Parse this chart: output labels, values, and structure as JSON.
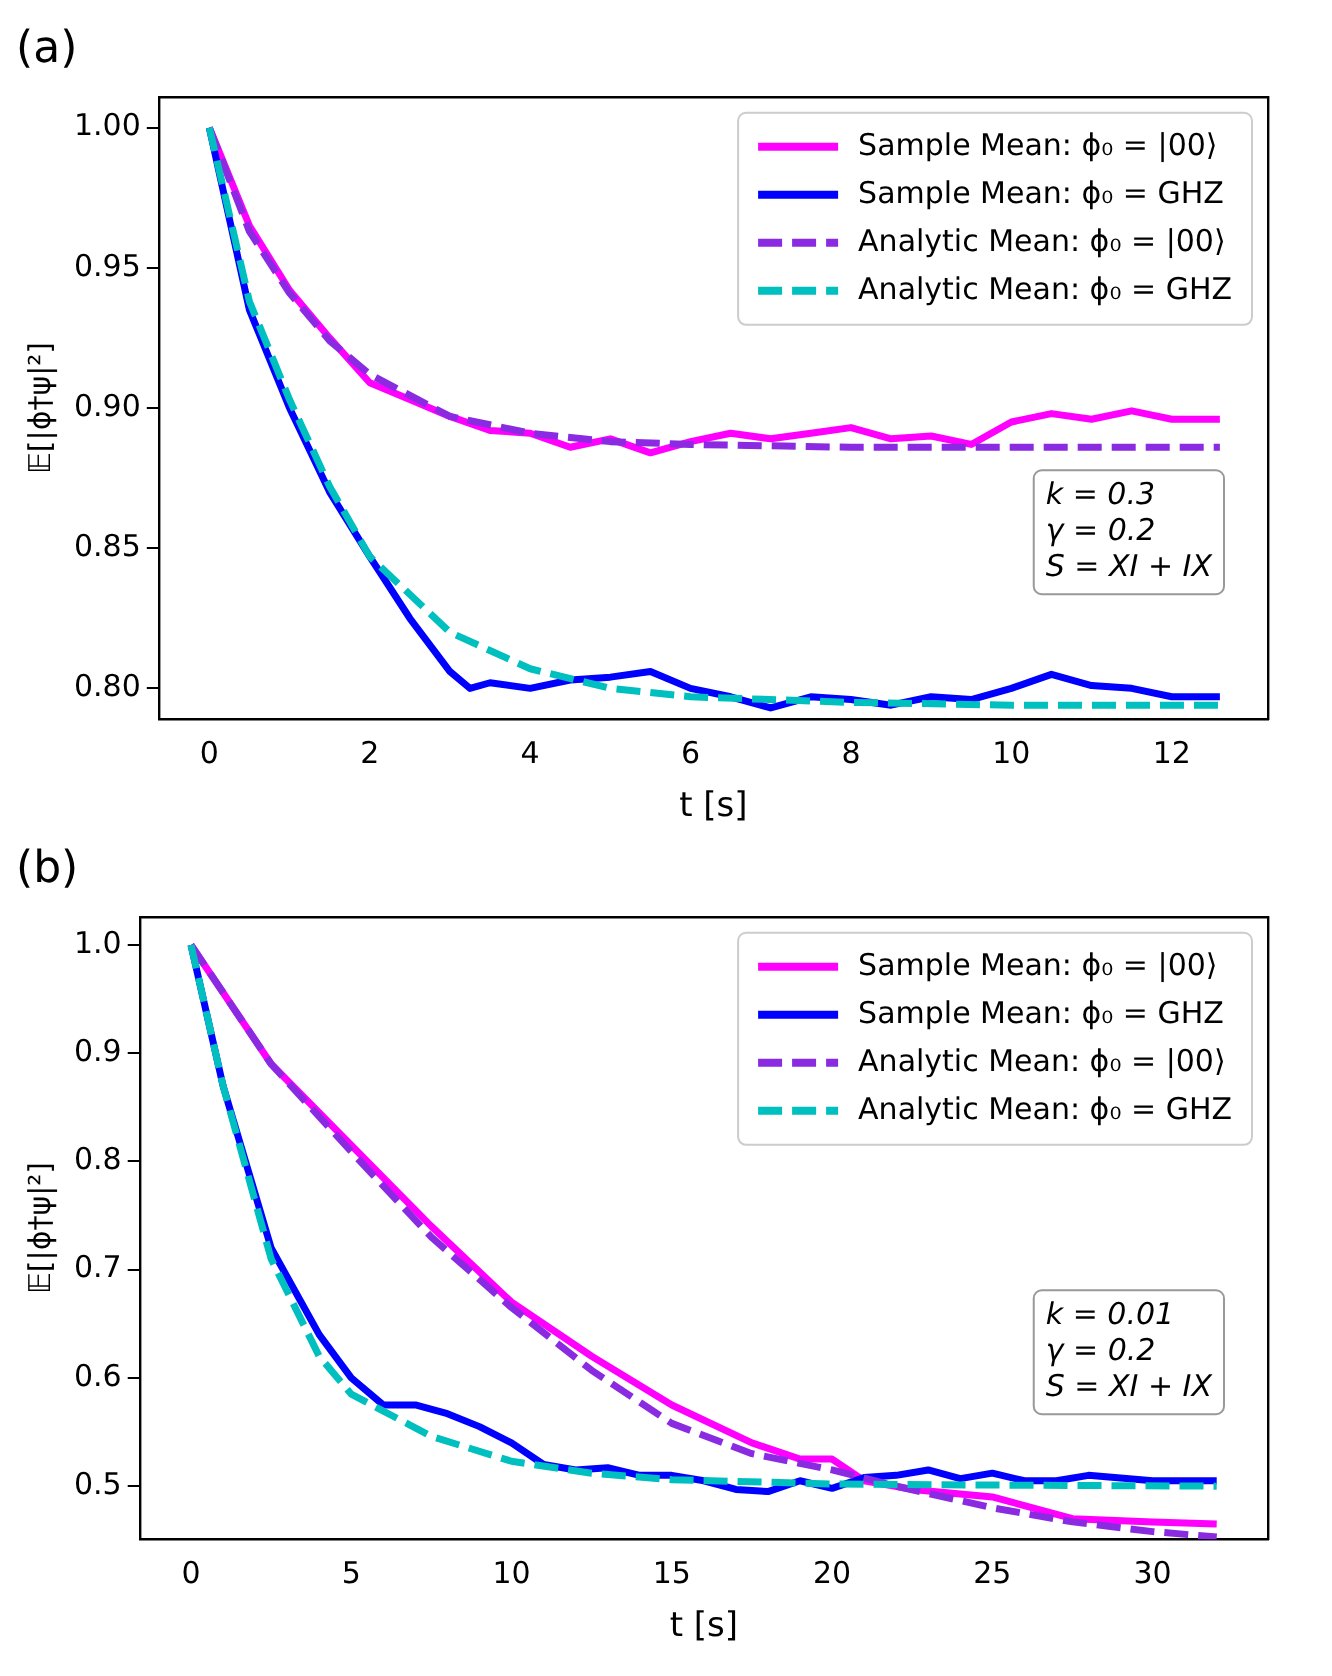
{
  "chart_data": [
    {
      "type": "line",
      "title": "(a)",
      "xlabel": "t [s]",
      "ylabel": "𝔼[|ϕ†ψ|²]",
      "grid": false,
      "legend": "top right",
      "marker": "none",
      "xlim": [
        -0.63,
        13.2
      ],
      "ylim": [
        0.789,
        1.011
      ],
      "xticks": [
        0,
        2,
        4,
        6,
        8,
        10,
        12
      ],
      "yticks": [
        {
          "value": 0.8,
          "label": "0.80"
        },
        {
          "value": 0.85,
          "label": "0.85"
        },
        {
          "value": 0.9,
          "label": "0.90"
        },
        {
          "value": 0.95,
          "label": "0.95"
        },
        {
          "value": 1.0,
          "label": "1.00"
        }
      ],
      "annotations": [
        "k = 0.3",
        "γ = 0.2",
        "S = XI + IX"
      ],
      "series": [
        {
          "name": "Sample Mean: ϕ₀ = |00⟩",
          "color": "#ff00ff",
          "line_style": "solid",
          "x": [
            0,
            0.5,
            1,
            1.5,
            2,
            2.5,
            3,
            3.5,
            4,
            4.5,
            5,
            5.5,
            6,
            6.5,
            7,
            7.5,
            8,
            8.5,
            9,
            9.5,
            10,
            10.5,
            11,
            11.5,
            12,
            12.6
          ],
          "values": [
            1.0,
            0.965,
            0.942,
            0.925,
            0.909,
            0.903,
            0.897,
            0.892,
            0.891,
            0.886,
            0.889,
            0.884,
            0.888,
            0.891,
            0.889,
            0.891,
            0.893,
            0.889,
            0.89,
            0.887,
            0.895,
            0.898,
            0.896,
            0.899,
            0.896,
            0.896
          ]
        },
        {
          "name": "Sample Mean: ϕ₀ = GHZ",
          "color": "#0000ff",
          "line_style": "solid",
          "x": [
            0,
            0.5,
            1,
            1.5,
            2,
            2.5,
            3,
            3.25,
            3.5,
            4,
            4.5,
            5,
            5.5,
            6,
            6.5,
            7,
            7.5,
            8,
            8.5,
            9,
            9.5,
            10,
            10.5,
            11,
            11.5,
            12,
            12.6
          ],
          "values": [
            1.0,
            0.935,
            0.9,
            0.87,
            0.847,
            0.825,
            0.806,
            0.8,
            0.802,
            0.8,
            0.803,
            0.804,
            0.806,
            0.8,
            0.797,
            0.793,
            0.797,
            0.796,
            0.794,
            0.797,
            0.796,
            0.8,
            0.805,
            0.801,
            0.8,
            0.797,
            0.797
          ]
        },
        {
          "name": "Analytic Mean: ϕ₀ = |00⟩",
          "color": "#8a2be2",
          "line_style": "dashed",
          "x": [
            0,
            0.5,
            1,
            1.5,
            2,
            3,
            4,
            5,
            6,
            8,
            10,
            12.6
          ],
          "values": [
            1.0,
            0.963,
            0.941,
            0.924,
            0.912,
            0.897,
            0.891,
            0.888,
            0.887,
            0.886,
            0.886,
            0.886
          ]
        },
        {
          "name": "Analytic Mean: ϕ₀ = GHZ",
          "color": "#00bfbf",
          "line_style": "dashed",
          "x": [
            0,
            0.5,
            1,
            1.5,
            2,
            3,
            4,
            5,
            6,
            8,
            10,
            12.6
          ],
          "values": [
            1.0,
            0.938,
            0.903,
            0.872,
            0.847,
            0.82,
            0.807,
            0.8,
            0.797,
            0.795,
            0.794,
            0.794
          ]
        }
      ]
    },
    {
      "type": "line",
      "title": "(b)",
      "xlabel": "t [s]",
      "ylabel": "𝔼[|ϕ†ψ|²]",
      "grid": false,
      "legend": "top right",
      "marker": "none",
      "xlim": [
        -1.6,
        33.6
      ],
      "ylim": [
        0.451,
        1.026
      ],
      "xticks": [
        0,
        5,
        10,
        15,
        20,
        25,
        30
      ],
      "yticks": [
        {
          "value": 0.5,
          "label": "0.5"
        },
        {
          "value": 0.6,
          "label": "0.6"
        },
        {
          "value": 0.7,
          "label": "0.7"
        },
        {
          "value": 0.8,
          "label": "0.8"
        },
        {
          "value": 0.9,
          "label": "0.9"
        },
        {
          "value": 1.0,
          "label": "1.0"
        }
      ],
      "annotations": [
        "k = 0.01",
        "γ = 0.2",
        "S = XI + IX"
      ],
      "series": [
        {
          "name": "Sample Mean: ϕ₀ = |00⟩",
          "color": "#ff00ff",
          "line_style": "solid",
          "x": [
            0,
            2.5,
            5,
            7.5,
            10,
            12.5,
            15,
            17.5,
            19,
            20,
            21,
            22.5,
            25,
            27.5,
            30,
            32
          ],
          "values": [
            1.0,
            0.89,
            0.815,
            0.74,
            0.67,
            0.62,
            0.575,
            0.54,
            0.525,
            0.525,
            0.505,
            0.497,
            0.49,
            0.47,
            0.467,
            0.465
          ]
        },
        {
          "name": "Sample Mean: ϕ₀ = GHZ",
          "color": "#0000ff",
          "line_style": "solid",
          "x": [
            0,
            1,
            2.5,
            4,
            5,
            6,
            7,
            8,
            9,
            10,
            11,
            12,
            13,
            14,
            15,
            16,
            17,
            18,
            19,
            20,
            21,
            22,
            23,
            24,
            25,
            26,
            27,
            28,
            30,
            32
          ],
          "values": [
            1.0,
            0.87,
            0.72,
            0.64,
            0.6,
            0.575,
            0.575,
            0.567,
            0.555,
            0.54,
            0.52,
            0.515,
            0.517,
            0.51,
            0.51,
            0.505,
            0.497,
            0.495,
            0.505,
            0.498,
            0.508,
            0.51,
            0.515,
            0.507,
            0.512,
            0.505,
            0.505,
            0.51,
            0.505,
            0.505
          ]
        },
        {
          "name": "Analytic Mean: ϕ₀ = |00⟩",
          "color": "#8a2be2",
          "line_style": "dashed",
          "x": [
            0,
            2.5,
            5,
            7.5,
            10,
            12.5,
            15,
            17.5,
            20,
            22,
            25,
            27.5,
            30,
            32
          ],
          "values": [
            1.0,
            0.89,
            0.809,
            0.73,
            0.665,
            0.607,
            0.558,
            0.53,
            0.515,
            0.5,
            0.48,
            0.467,
            0.458,
            0.453
          ]
        },
        {
          "name": "Analytic Mean: ϕ₀ = GHZ",
          "color": "#00bfbf",
          "line_style": "dashed",
          "x": [
            0,
            1,
            2.5,
            4,
            5,
            7.5,
            10,
            12.5,
            15,
            20,
            25,
            32
          ],
          "values": [
            1.0,
            0.87,
            0.71,
            0.62,
            0.585,
            0.546,
            0.523,
            0.512,
            0.506,
            0.502,
            0.501,
            0.5
          ]
        }
      ]
    }
  ]
}
